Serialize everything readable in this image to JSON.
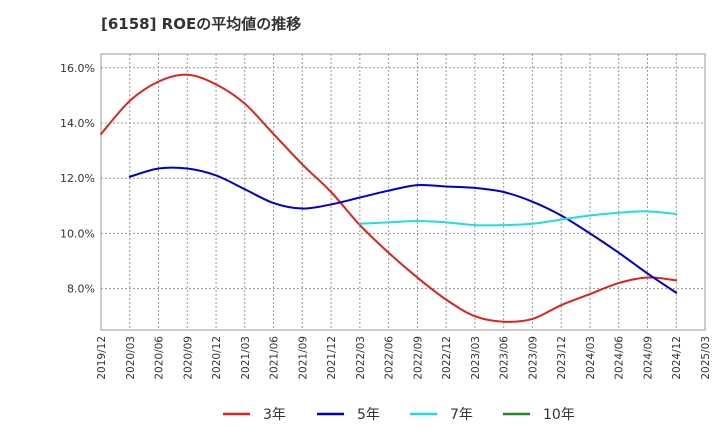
{
  "chart_data": {
    "type": "line",
    "title": "[6158]  ROEの平均値の推移",
    "xlabel": "",
    "ylabel": "",
    "ylim": [
      6.5,
      16.5
    ],
    "y_ticks": [
      8.0,
      10.0,
      12.0,
      14.0,
      16.0
    ],
    "y_tick_labels": [
      "8.0%",
      "10.0%",
      "12.0%",
      "14.0%",
      "16.0%"
    ],
    "x_tick_labels": [
      "2019/12",
      "2020/03",
      "2020/06",
      "2020/09",
      "2020/12",
      "2021/03",
      "2021/06",
      "2021/09",
      "2021/12",
      "2022/03",
      "2022/06",
      "2022/09",
      "2022/12",
      "2023/03",
      "2023/06",
      "2023/09",
      "2023/12",
      "2024/03",
      "2024/06",
      "2024/09",
      "2024/12",
      "2025/03"
    ],
    "grid": true,
    "legend_position": "bottom",
    "series": [
      {
        "name": "3年",
        "color": "#dd2222",
        "x": [
          0,
          1,
          2,
          3,
          4,
          5,
          6,
          7,
          8,
          9,
          10,
          11,
          12,
          13,
          14,
          15,
          16,
          17,
          18,
          19,
          20
        ],
        "values": [
          13.6,
          14.8,
          15.5,
          15.75,
          15.4,
          14.7,
          13.6,
          12.5,
          11.5,
          10.3,
          9.3,
          8.4,
          7.6,
          7.0,
          6.8,
          6.9,
          7.4,
          7.8,
          8.2,
          8.4,
          8.3
        ]
      },
      {
        "name": "5年",
        "color": "#0000cc",
        "x": [
          1,
          2,
          3,
          4,
          5,
          6,
          7,
          8,
          9,
          10,
          11,
          12,
          13,
          14,
          15,
          16,
          17,
          18,
          19,
          20
        ],
        "values": [
          12.05,
          12.35,
          12.35,
          12.1,
          11.6,
          11.1,
          10.9,
          11.05,
          11.3,
          11.55,
          11.75,
          11.7,
          11.65,
          11.5,
          11.15,
          10.65,
          10.0,
          9.3,
          8.55,
          7.85
        ]
      },
      {
        "name": "7年",
        "color": "#22dddd",
        "x": [
          9,
          10,
          11,
          12,
          13,
          14,
          15,
          16,
          17,
          18,
          19,
          20
        ],
        "values": [
          10.35,
          10.4,
          10.45,
          10.4,
          10.3,
          10.3,
          10.35,
          10.5,
          10.65,
          10.75,
          10.8,
          10.7
        ]
      },
      {
        "name": "10年",
        "color": "#228822",
        "x": [],
        "values": []
      }
    ]
  }
}
